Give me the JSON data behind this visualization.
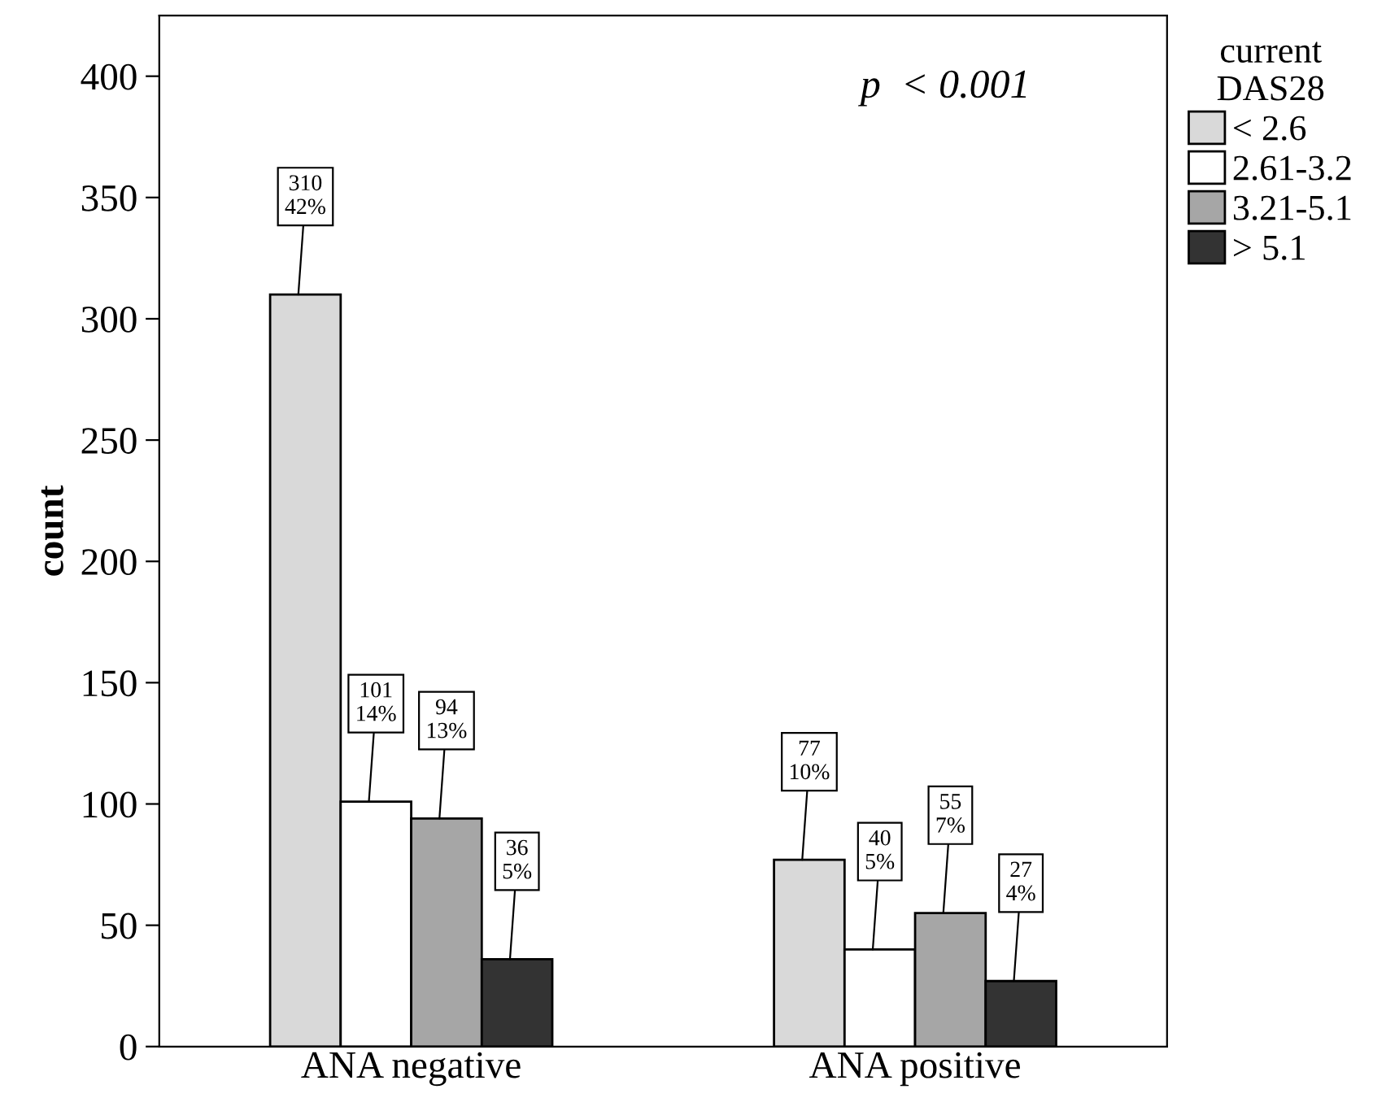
{
  "chart_data": {
    "type": "bar",
    "ylabel": "count",
    "legend_title": "current\nDAS28",
    "categories": [
      "ANA negative",
      "ANA positive"
    ],
    "series": [
      {
        "name": "< 2.6",
        "color": "#d9d9d9",
        "values": [
          310,
          77
        ],
        "value_labels": [
          "310\n42%",
          "77\n10%"
        ]
      },
      {
        "name": "2.61-3.2",
        "color": "#ffffff",
        "values": [
          101,
          40
        ],
        "value_labels": [
          "101\n14%",
          "40\n5%"
        ]
      },
      {
        "name": "3.21-5.1",
        "color": "#a6a6a6",
        "values": [
          94,
          55
        ],
        "value_labels": [
          "94\n13%",
          "55\n7%"
        ]
      },
      {
        "name": "> 5.1",
        "color": "#333333",
        "values": [
          36,
          27
        ],
        "value_labels": [
          "36\n5%",
          "27\n4%"
        ]
      }
    ],
    "ylim": [
      0,
      425
    ],
    "yticks": [
      0,
      50,
      100,
      150,
      200,
      250,
      300,
      350,
      400
    ],
    "annotations": [
      "p  < 0.001"
    ],
    "grid": false,
    "legend": "right"
  }
}
